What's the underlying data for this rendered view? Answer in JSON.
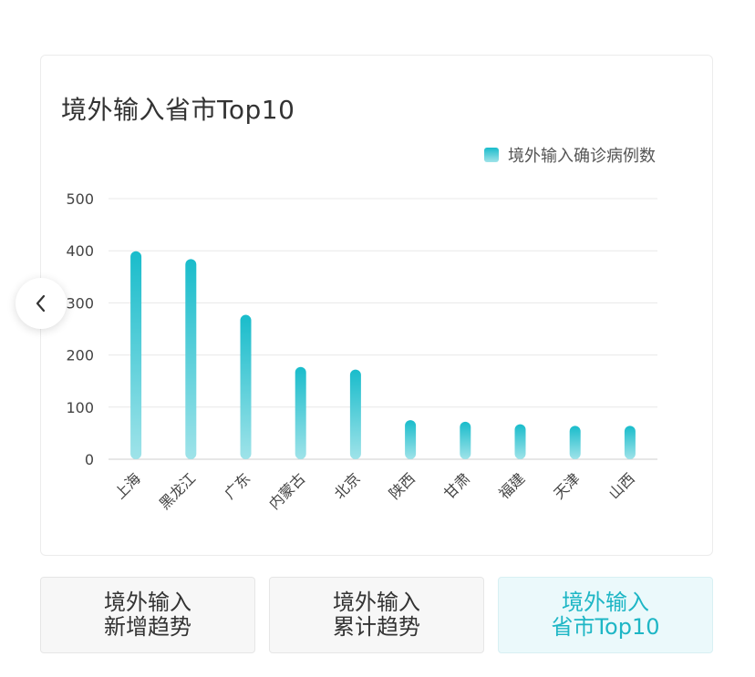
{
  "chart_data": {
    "type": "bar",
    "title": "境外输入省市Top10",
    "categories": [
      "上海",
      "黑龙江",
      "广东",
      "内蒙古",
      "北京",
      "陕西",
      "甘肃",
      "福建",
      "天津",
      "山西"
    ],
    "series": [
      {
        "name": "境外输入确诊病例数",
        "values": [
          399,
          384,
          277,
          177,
          172,
          75,
          72,
          67,
          64,
          64
        ]
      }
    ],
    "ylim": [
      0,
      500
    ],
    "yticks": [
      0,
      100,
      200,
      300,
      400,
      500
    ],
    "grid": true,
    "legend_position": "top-right",
    "colors": {
      "bar_top": "#19bccb",
      "bar_bottom": "#9fe3e9"
    }
  },
  "tabs": [
    {
      "line1": "境外输入",
      "line2": "新增趋势",
      "active": false
    },
    {
      "line1": "境外输入",
      "line2": "累计趋势",
      "active": false
    },
    {
      "line1": "境外输入",
      "line2": "省市Top10",
      "active": true
    }
  ],
  "icons": {
    "prev": "chevron-left-icon"
  }
}
